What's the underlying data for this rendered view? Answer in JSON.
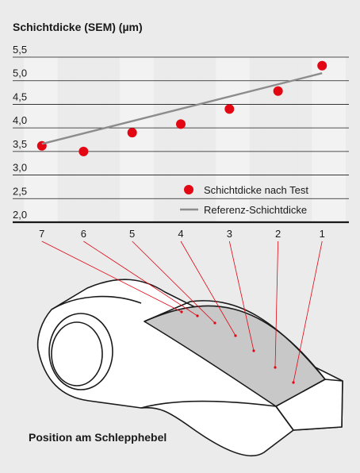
{
  "chart_data": {
    "type": "scatter",
    "title": "Schichtdicke (SEM) (µm)",
    "xlabel": "",
    "ylabel": "",
    "categories": [
      "7",
      "6",
      "5",
      "4",
      "3",
      "2",
      "1"
    ],
    "ylim": [
      2.0,
      5.5
    ],
    "yticks": [
      "2,0",
      "2,5",
      "3,0",
      "3,5",
      "4,0",
      "4,5",
      "5,0",
      "5,5"
    ],
    "grid": true,
    "legend_position": "bottom-right",
    "series": [
      {
        "name": "Schichtdicke nach Test",
        "kind": "points",
        "color": "#e30613",
        "values": [
          3.62,
          3.5,
          3.9,
          4.08,
          4.4,
          4.78,
          5.32
        ]
      },
      {
        "name": "Referenz-Schichtdicke",
        "kind": "line",
        "color": "#8c8c8c",
        "values": [
          3.66,
          null,
          null,
          null,
          null,
          null,
          5.16
        ]
      }
    ]
  },
  "diagram": {
    "caption": "Position am Schlepphebel",
    "component": "rocker-arm",
    "coated_region_color": "#c8c8c8"
  }
}
